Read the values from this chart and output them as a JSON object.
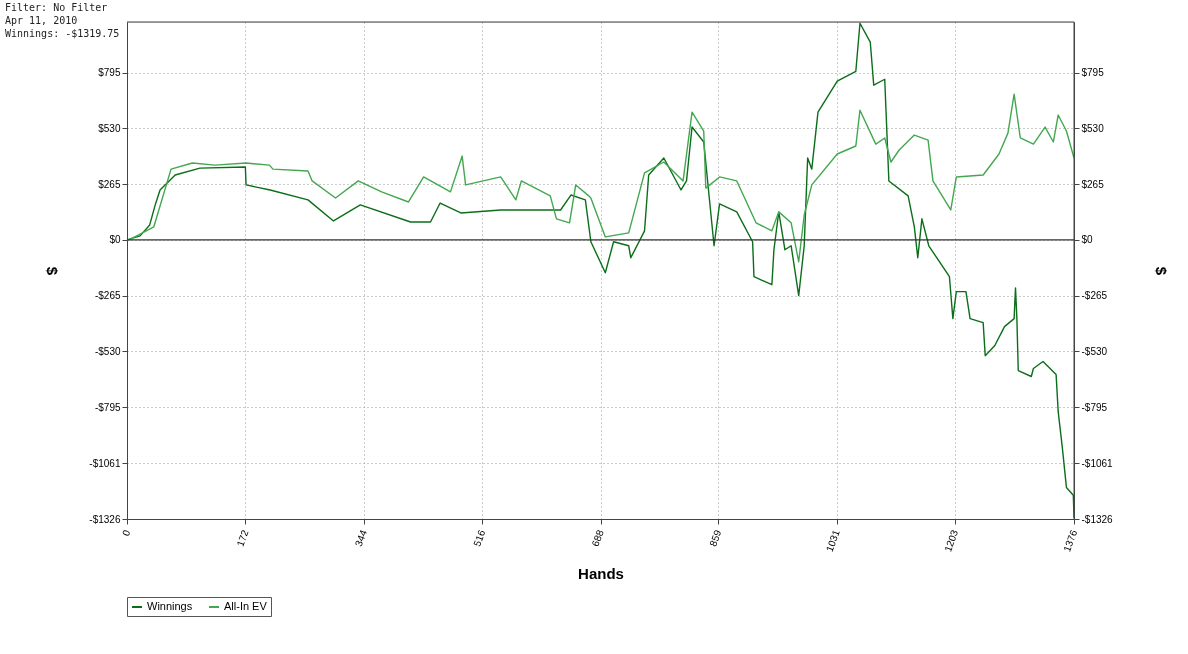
{
  "chart_data": {
    "type": "line",
    "xlabel": "Hands",
    "ylabel": "$",
    "y2label": "$",
    "annotations": [
      "Filter: No Filter",
      "Apr 11, 2010",
      "Winnings: -$1319.75"
    ],
    "xlim": [
      0,
      1376
    ],
    "xticks": [
      0,
      172,
      344,
      516,
      688,
      859,
      1031,
      1203,
      1376
    ],
    "ylim": [
      -1326,
      1035
    ],
    "yticks": [
      {
        "value": 795,
        "label": "$795"
      },
      {
        "value": 530,
        "label": "$530"
      },
      {
        "value": 265,
        "label": "$265"
      },
      {
        "value": 0,
        "label": "$0"
      },
      {
        "value": -265,
        "label": "-$265"
      },
      {
        "value": -530,
        "label": "-$530"
      },
      {
        "value": -795,
        "label": "-$795"
      },
      {
        "value": -1061,
        "label": "-$1061"
      },
      {
        "value": -1326,
        "label": "-$1326"
      }
    ],
    "y2lim": [
      -1326,
      1035
    ],
    "y2ticks": [
      {
        "value": 795,
        "label": "$795"
      },
      {
        "value": 530,
        "label": "$530"
      },
      {
        "value": 265,
        "label": "$265"
      },
      {
        "value": 0,
        "label": "$0"
      },
      {
        "value": -265,
        "label": "-$265"
      },
      {
        "value": -530,
        "label": "-$530"
      },
      {
        "value": -795,
        "label": "-$795"
      },
      {
        "value": -1061,
        "label": "-$1061"
      },
      {
        "value": -1326,
        "label": "-$1326"
      }
    ],
    "grid": true,
    "legend": "bottom left",
    "marker": "none",
    "line_style": "solid",
    "ref_lines": [
      {
        "axis": "y",
        "value": 0,
        "color": "#333333"
      }
    ],
    "series": [
      {
        "name": "Winnings",
        "color": "#0b6e1a",
        "x": [
          0,
          19,
          33,
          41,
          48,
          70,
          106,
          172,
          173,
          208,
          263,
          300,
          339,
          412,
          441,
          455,
          485,
          543,
          630,
          645,
          666,
          674,
          695,
          707,
          729,
          732,
          752,
          758,
          780,
          805,
          813,
          821,
          838,
          853,
          861,
          886,
          909,
          911,
          937,
          940,
          947,
          956,
          965,
          976,
          984,
          989,
          995,
          1004,
          1032,
          1059,
          1065,
          1080,
          1085,
          1101,
          1107,
          1135,
          1144,
          1149,
          1155,
          1165,
          1195,
          1200,
          1205,
          1219,
          1225,
          1244,
          1247,
          1261,
          1275,
          1289,
          1291,
          1293,
          1295,
          1314,
          1317,
          1331,
          1350,
          1353,
          1359,
          1365,
          1375,
          1376
        ],
        "values": [
          0,
          19,
          71,
          166,
          237,
          308,
          341,
          346,
          261,
          237,
          190,
          90,
          166,
          85,
          85,
          175,
          128,
          142,
          142,
          213,
          190,
          -9,
          -156,
          -9,
          -28,
          -85,
          43,
          308,
          389,
          237,
          280,
          536,
          465,
          -28,
          171,
          133,
          -9,
          -175,
          -213,
          -47,
          133,
          -47,
          -28,
          -265,
          -28,
          389,
          336,
          607,
          754,
          801,
          1029,
          939,
          735,
          763,
          280,
          209,
          62,
          -85,
          100,
          -28,
          -175,
          -374,
          -246,
          -246,
          -374,
          -393,
          -550,
          -502,
          -412,
          -374,
          -228,
          -374,
          -621,
          -649,
          -611,
          -578,
          -640,
          -815,
          -986,
          -1176,
          -1213,
          -1320
        ]
      },
      {
        "name": "All-In EV",
        "color": "#42a84f",
        "x": [
          0,
          3,
          39,
          64,
          95,
          128,
          173,
          207,
          212,
          263,
          269,
          303,
          336,
          370,
          409,
          431,
          470,
          487,
          492,
          543,
          565,
          573,
          615,
          624,
          643,
          652,
          671,
          674,
          695,
          729,
          752,
          780,
          808,
          821,
          838,
          841,
          861,
          886,
          914,
          937,
          947,
          965,
          976,
          984,
          995,
          1032,
          1059,
          1065,
          1088,
          1101,
          1110,
          1122,
          1144,
          1164,
          1171,
          1197,
          1205,
          1244,
          1267,
          1280,
          1289,
          1298,
          1317,
          1334,
          1346,
          1353,
          1365,
          1376
        ],
        "values": [
          0,
          0,
          62,
          336,
          365,
          355,
          365,
          355,
          336,
          327,
          280,
          199,
          280,
          228,
          180,
          299,
          228,
          398,
          261,
          299,
          190,
          280,
          209,
          100,
          81,
          261,
          209,
          199,
          14,
          33,
          318,
          370,
          280,
          607,
          517,
          246,
          299,
          280,
          81,
          43,
          133,
          81,
          -104,
          118,
          261,
          408,
          446,
          616,
          455,
          484,
          370,
          427,
          498,
          474,
          280,
          142,
          299,
          308,
          408,
          507,
          692,
          484,
          455,
          536,
          465,
          593,
          517,
          389
        ]
      }
    ]
  }
}
